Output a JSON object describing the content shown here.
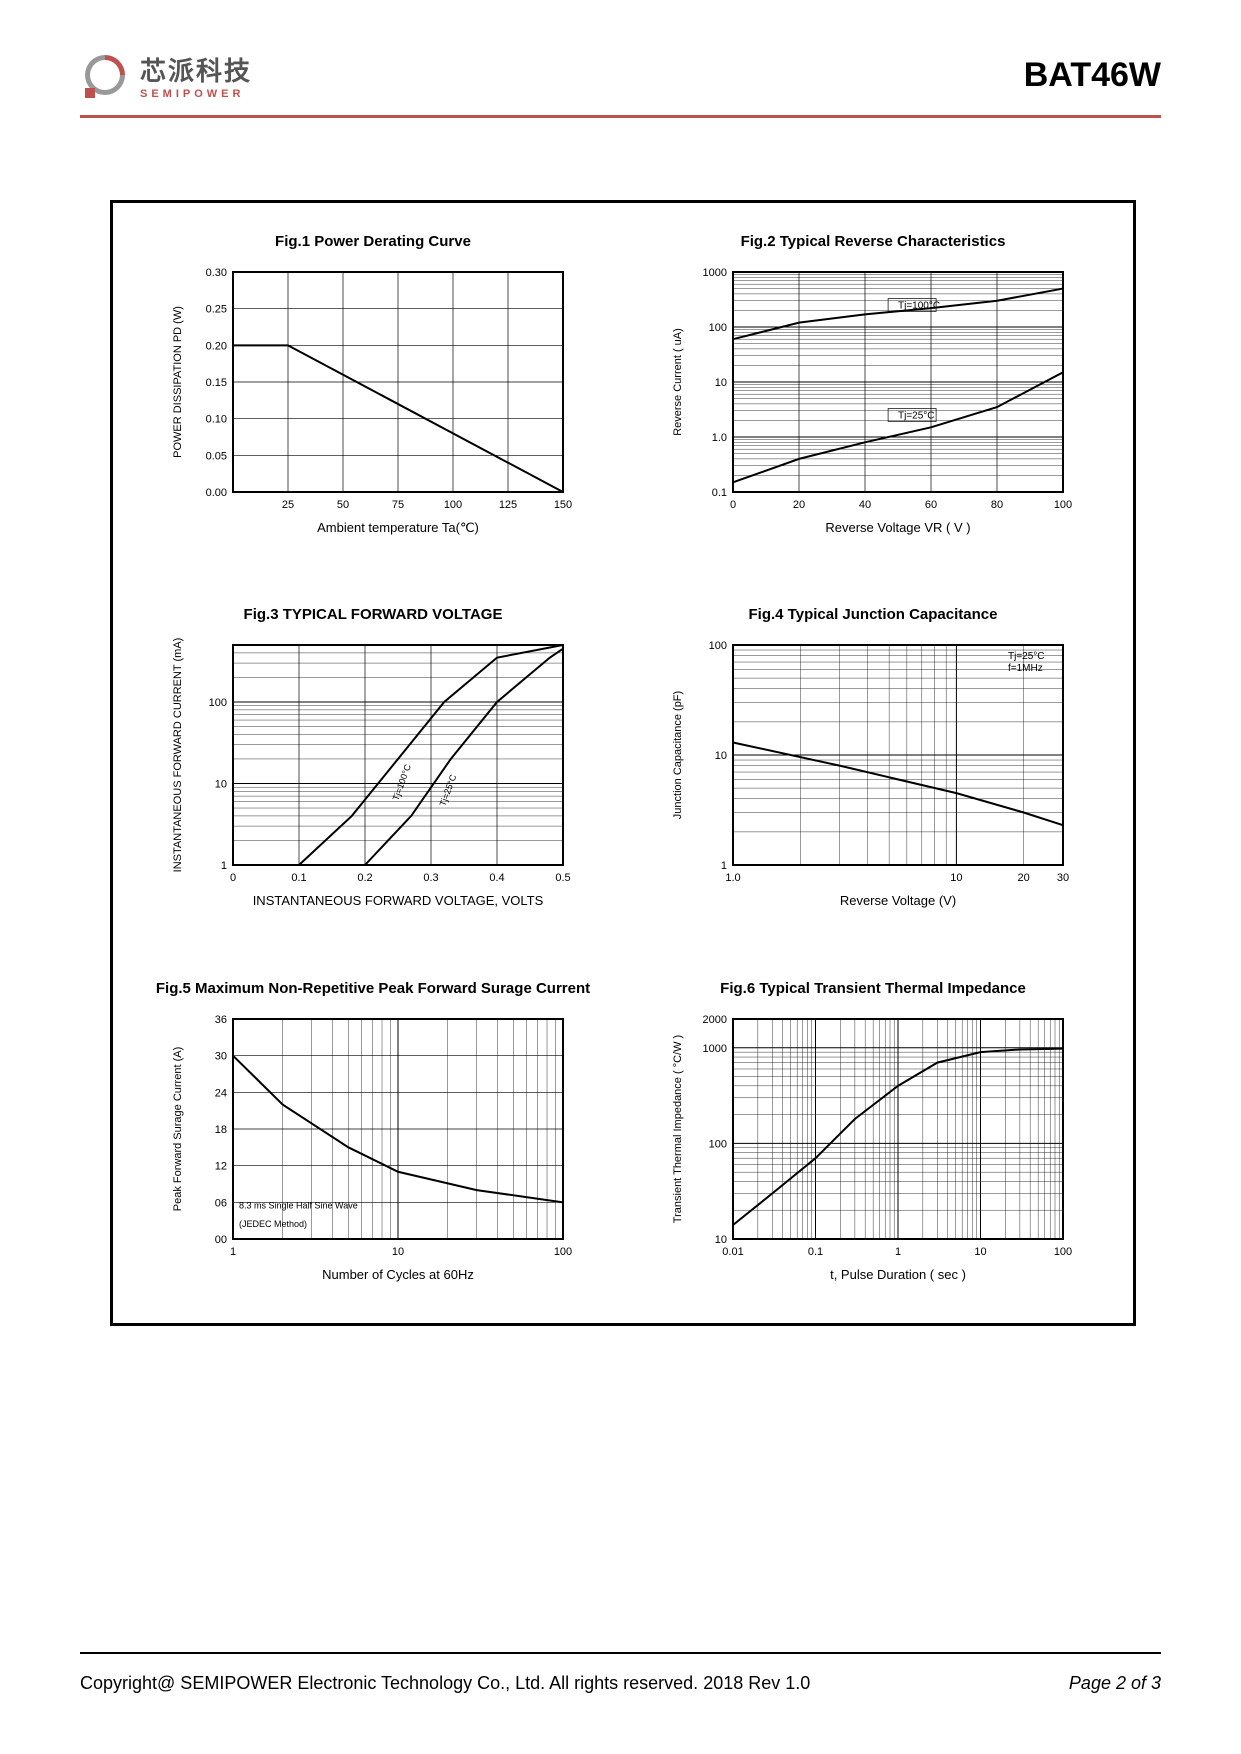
{
  "header": {
    "logo_cn": "芯派科技",
    "logo_en": "SEMIPOWER",
    "part_number": "BAT46W"
  },
  "footer": {
    "copyright": "Copyright@ SEMIPOWER Electronic Technology Co., Ltd.  All rights reserved.  2018  Rev  1.0",
    "page": "Page 2 of 3"
  },
  "colors": {
    "accent": "#c0504d",
    "black": "#000000",
    "grid": "#000000",
    "background": "#ffffff"
  },
  "fig1": {
    "title": "Fig.1  Power Derating Curve",
    "ylabel": "POWER DISSIPATION  PD (W)",
    "xlabel": "Ambient temperature  Ta(℃)",
    "xlim": [
      0,
      150
    ],
    "ylim": [
      0.0,
      0.3
    ],
    "xticks": [
      25,
      50,
      75,
      100,
      125,
      150
    ],
    "yticks": [
      "0.00",
      "0.05",
      "0.10",
      "0.15",
      "0.20",
      "0.25",
      "0.30"
    ],
    "line": [
      [
        0,
        0.2
      ],
      [
        25,
        0.2
      ],
      [
        150,
        0.0
      ]
    ],
    "line_color": "#000000",
    "line_width": 2
  },
  "fig2": {
    "title": "Fig.2  Typical Reverse Characteristics",
    "ylabel": "Reverse Current ( uA)",
    "xlabel": "Reverse Voltage VR   ( V )",
    "xlim": [
      0,
      100
    ],
    "ylim_log": [
      0.1,
      1000
    ],
    "xticks": [
      0,
      20,
      40,
      60,
      80,
      100
    ],
    "yticks": [
      "0.1",
      "1.0",
      "10",
      "100",
      "1000"
    ],
    "annotations": [
      "Tj=100°C",
      "Tj=25°C"
    ],
    "series": [
      {
        "label": "Tj=100°C",
        "points": [
          [
            0,
            60
          ],
          [
            20,
            120
          ],
          [
            40,
            170
          ],
          [
            60,
            220
          ],
          [
            80,
            300
          ],
          [
            100,
            500
          ]
        ]
      },
      {
        "label": "Tj=25°C",
        "points": [
          [
            0,
            0.15
          ],
          [
            20,
            0.4
          ],
          [
            40,
            0.8
          ],
          [
            60,
            1.5
          ],
          [
            80,
            3.5
          ],
          [
            100,
            15
          ]
        ]
      }
    ],
    "line_color": "#000000",
    "line_width": 2
  },
  "fig3": {
    "title": "Fig.3  TYPICAL FORWARD VOLTAGE",
    "ylabel": "INSTANTANEOUS FORWARD CURRENT (mA)",
    "xlabel": "INSTANTANEOUS FORWARD VOLTAGE, VOLTS",
    "xlim": [
      0,
      0.5
    ],
    "ylim_log": [
      1,
      500
    ],
    "xticks": [
      "0",
      "0.1",
      "0.2",
      "0.3",
      "0.4",
      "0.5"
    ],
    "yticks": [
      "1",
      "10",
      "100"
    ],
    "annotations": [
      "Tj=100°C",
      "Tj=25°C"
    ],
    "series": [
      {
        "points": [
          [
            0.1,
            1
          ],
          [
            0.18,
            4
          ],
          [
            0.25,
            20
          ],
          [
            0.32,
            100
          ],
          [
            0.4,
            350
          ],
          [
            0.5,
            500
          ]
        ]
      },
      {
        "points": [
          [
            0.2,
            1
          ],
          [
            0.27,
            4
          ],
          [
            0.33,
            20
          ],
          [
            0.4,
            100
          ],
          [
            0.48,
            350
          ],
          [
            0.5,
            450
          ]
        ]
      }
    ],
    "line_color": "#000000",
    "line_width": 2
  },
  "fig4": {
    "title": "Fig.4  Typical Junction Capacitance",
    "ylabel": "Junction Capacitance (pF)",
    "xlabel": "Reverse  Voltage (V)",
    "xlim_log": [
      1.0,
      30
    ],
    "ylim_log": [
      1,
      100
    ],
    "xticks": [
      "1.0",
      "10",
      "20",
      "30"
    ],
    "yticks": [
      "1",
      "10",
      "100"
    ],
    "annotations": [
      "Tj=25°C",
      "f=1MHz"
    ],
    "series": [
      {
        "points": [
          [
            1,
            13
          ],
          [
            3,
            8
          ],
          [
            10,
            4.5
          ],
          [
            20,
            3.0
          ],
          [
            30,
            2.3
          ]
        ]
      }
    ],
    "line_color": "#000000",
    "line_width": 2
  },
  "fig5": {
    "title": "Fig.5  Maximum Non-Repetitive Peak Forward Surage Current",
    "ylabel": "Peak Forward Surage Current (A)",
    "xlabel": "Number of Cycles at 60Hz",
    "xlim_log": [
      1,
      100
    ],
    "ylim": [
      0,
      36
    ],
    "xticks": [
      "1",
      "10",
      "100"
    ],
    "yticks": [
      "00",
      "06",
      "12",
      "18",
      "24",
      "30",
      "36"
    ],
    "annotation": "8.3 ms Single Half Sine Wave (JEDEC Method)",
    "series": [
      {
        "points": [
          [
            1,
            30
          ],
          [
            2,
            22
          ],
          [
            5,
            15
          ],
          [
            10,
            11
          ],
          [
            30,
            8
          ],
          [
            100,
            6
          ]
        ]
      }
    ],
    "line_color": "#000000",
    "line_width": 2
  },
  "fig6": {
    "title": "Fig.6  Typical Transient Thermal Impedance",
    "ylabel": "Transient Thermal Impedance ( °C/W )",
    "xlabel": "t, Pulse Duration ( sec )",
    "xlim_log": [
      0.01,
      100
    ],
    "ylim_log": [
      10,
      2000
    ],
    "xticks": [
      "0.01",
      "0.1",
      "1",
      "10",
      "100"
    ],
    "yticks": [
      "10",
      "100",
      "1000",
      "2000"
    ],
    "series": [
      {
        "points": [
          [
            0.01,
            14
          ],
          [
            0.03,
            30
          ],
          [
            0.1,
            70
          ],
          [
            0.3,
            180
          ],
          [
            1,
            400
          ],
          [
            3,
            700
          ],
          [
            10,
            900
          ],
          [
            30,
            960
          ],
          [
            100,
            980
          ]
        ]
      }
    ],
    "line_color": "#000000",
    "line_width": 2
  }
}
